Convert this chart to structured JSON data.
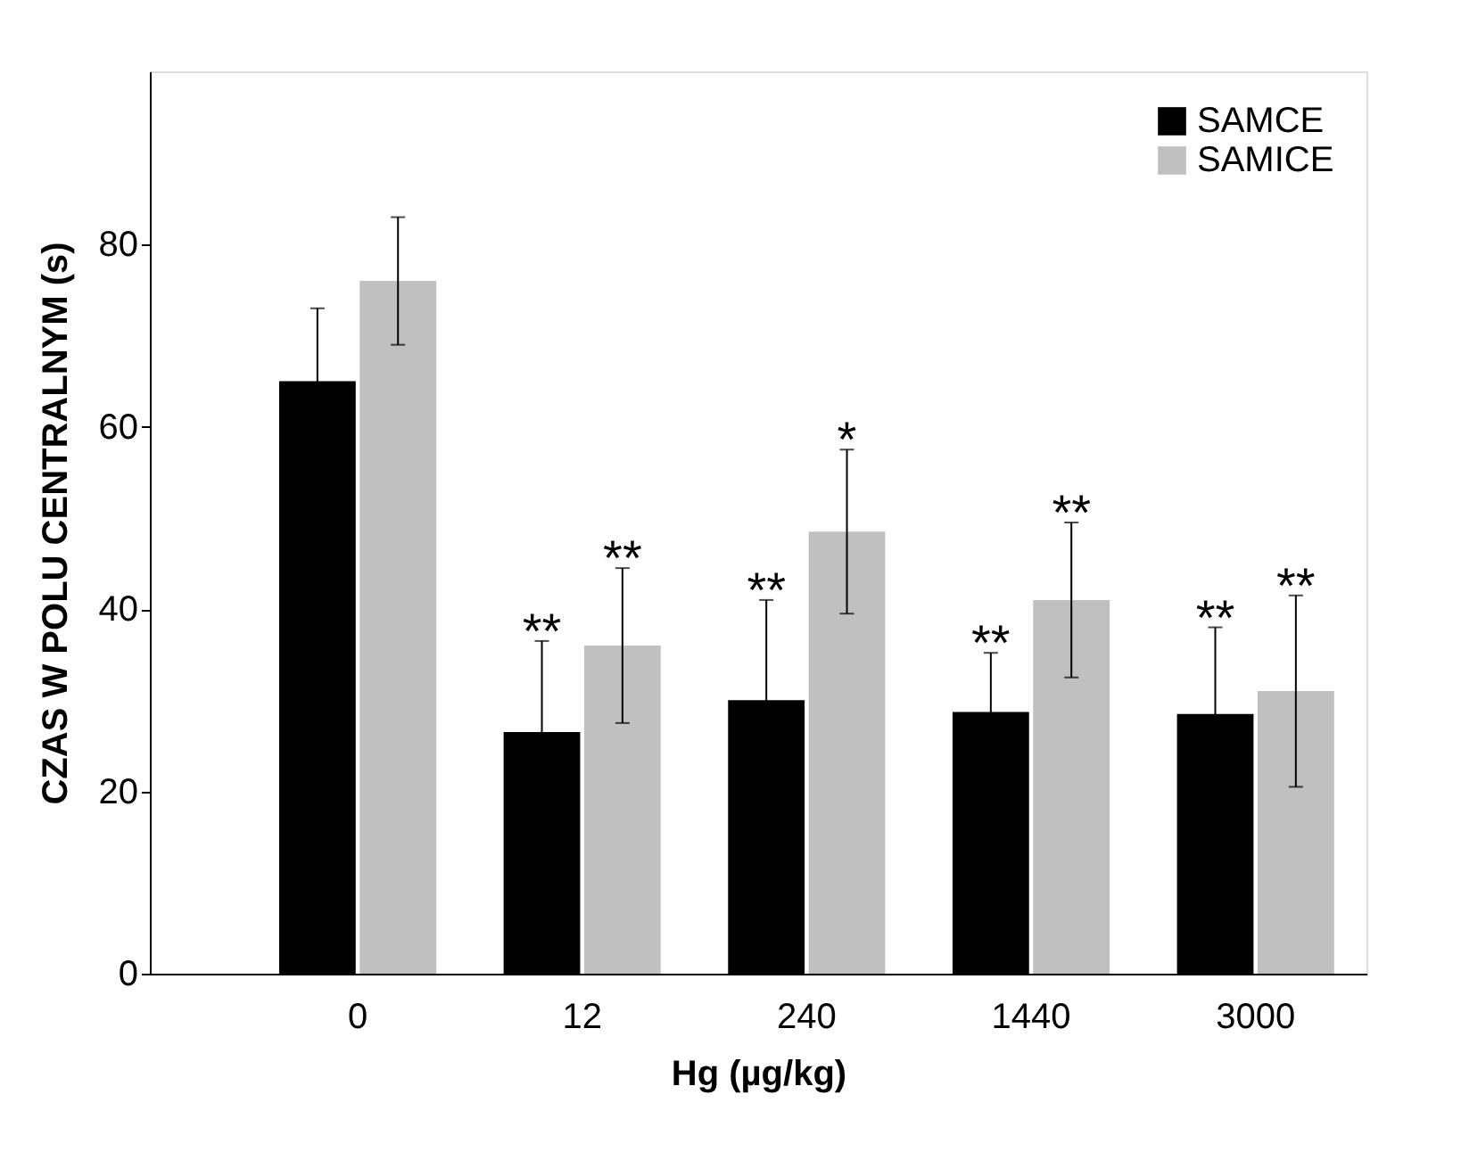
{
  "chart_data": {
    "type": "bar",
    "xlabel": "Hg (µg/kg)",
    "ylabel": "CZAS W POLU CENTRALNYM (s)",
    "categories": [
      "0",
      "12",
      "240",
      "1440",
      "3000"
    ],
    "series": [
      {
        "name": "SAMCE",
        "color": "#000000",
        "values": [
          65,
          26.5,
          30,
          28.7,
          28.5
        ],
        "errors": [
          8,
          10,
          11,
          6.5,
          9.5
        ],
        "value_labels": [
          null,
          "**",
          "**",
          "**",
          "**"
        ]
      },
      {
        "name": "SAMICE",
        "color": "#c0c0c0",
        "values": [
          76,
          36,
          48.5,
          41,
          31
        ],
        "errors": [
          7,
          8.5,
          9,
          8.5,
          10.5
        ],
        "value_labels": [
          null,
          "**",
          "*",
          "**",
          "**"
        ]
      }
    ],
    "ylim": [
      0,
      99
    ],
    "yticks": [
      0,
      20,
      40,
      60,
      80
    ],
    "grid": false,
    "legend": "top right"
  }
}
